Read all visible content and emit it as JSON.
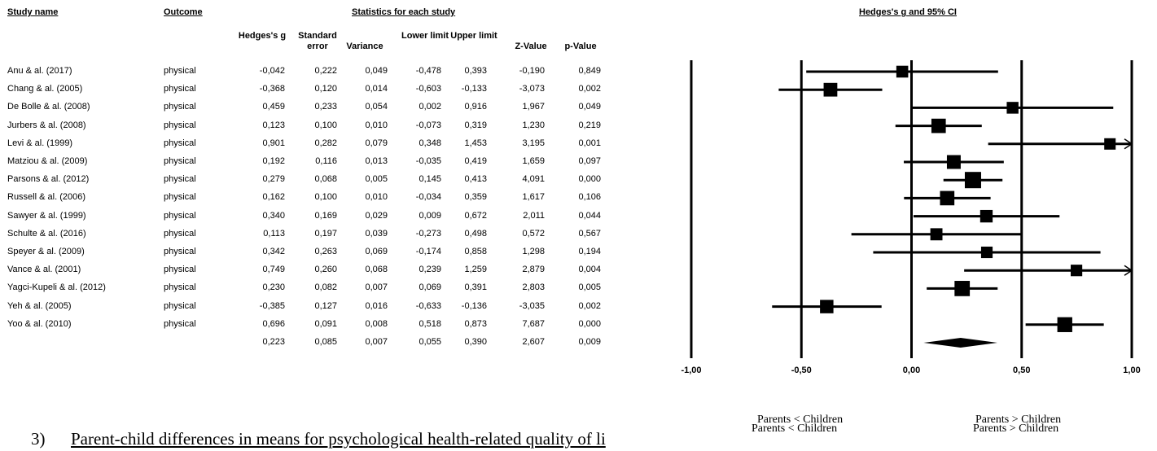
{
  "headers": {
    "study_name": "Study name",
    "outcome": "Outcome",
    "stats_group": "Statistics for each study",
    "ci_group": "Hedges's g and 95% CI",
    "columns": [
      "Hedges's g",
      "Standard error",
      "Variance",
      "Lower limit",
      "Upper limit",
      "Z-Value",
      "p-Value"
    ]
  },
  "chart_data": {
    "type": "forest",
    "title": "Hedges's g and 95% CI",
    "xlim": [
      -1.0,
      1.0
    ],
    "x_ticks": [
      "-1,00",
      "-0,50",
      "0,00",
      "0,50",
      "1,00"
    ],
    "x_tick_values": [
      -1.0,
      -0.5,
      0.0,
      0.5,
      1.0
    ],
    "studies": [
      {
        "name": "Anu & al. (2017)",
        "outcome": "physical",
        "g": -0.042,
        "se": 0.222,
        "variance": 0.049,
        "lower": -0.478,
        "upper": 0.393,
        "z": -0.19,
        "p": 0.849,
        "text": [
          "-0,042",
          "0,222",
          "0,049",
          "-0,478",
          "0,393",
          "-0,190",
          "0,849"
        ]
      },
      {
        "name": "Chang & al. (2005)",
        "outcome": "physical",
        "g": -0.368,
        "se": 0.12,
        "variance": 0.014,
        "lower": -0.603,
        "upper": -0.133,
        "z": -3.073,
        "p": 0.002,
        "text": [
          "-0,368",
          "0,120",
          "0,014",
          "-0,603",
          "-0,133",
          "-3,073",
          "0,002"
        ]
      },
      {
        "name": "De Bolle & al. (2008)",
        "outcome": "physical",
        "g": 0.459,
        "se": 0.233,
        "variance": 0.054,
        "lower": 0.002,
        "upper": 0.916,
        "z": 1.967,
        "p": 0.049,
        "text": [
          "0,459",
          "0,233",
          "0,054",
          "0,002",
          "0,916",
          "1,967",
          "0,049"
        ]
      },
      {
        "name": "Jurbers & al. (2008)",
        "outcome": "physical",
        "g": 0.123,
        "se": 0.1,
        "variance": 0.01,
        "lower": -0.073,
        "upper": 0.319,
        "z": 1.23,
        "p": 0.219,
        "text": [
          "0,123",
          "0,100",
          "0,010",
          "-0,073",
          "0,319",
          "1,230",
          "0,219"
        ]
      },
      {
        "name": "Levi & al. (1999)",
        "outcome": "physical",
        "g": 0.901,
        "se": 0.282,
        "variance": 0.079,
        "lower": 0.348,
        "upper": 1.453,
        "z": 3.195,
        "p": 0.001,
        "text": [
          "0,901",
          "0,282",
          "0,079",
          "0,348",
          "1,453",
          "3,195",
          "0,001"
        ]
      },
      {
        "name": "Matziou & al. (2009)",
        "outcome": "physical",
        "g": 0.192,
        "se": 0.116,
        "variance": 0.013,
        "lower": -0.035,
        "upper": 0.419,
        "z": 1.659,
        "p": 0.097,
        "text": [
          "0,192",
          "0,116",
          "0,013",
          "-0,035",
          "0,419",
          "1,659",
          "0,097"
        ]
      },
      {
        "name": "Parsons & al. (2012)",
        "outcome": "physical",
        "g": 0.279,
        "se": 0.068,
        "variance": 0.005,
        "lower": 0.145,
        "upper": 0.413,
        "z": 4.091,
        "p": 0.0,
        "text": [
          "0,279",
          "0,068",
          "0,005",
          "0,145",
          "0,413",
          "4,091",
          "0,000"
        ]
      },
      {
        "name": "Russell & al. (2006)",
        "outcome": "physical",
        "g": 0.162,
        "se": 0.1,
        "variance": 0.01,
        "lower": -0.034,
        "upper": 0.359,
        "z": 1.617,
        "p": 0.106,
        "text": [
          "0,162",
          "0,100",
          "0,010",
          "-0,034",
          "0,359",
          "1,617",
          "0,106"
        ]
      },
      {
        "name": "Sawyer & al. (1999)",
        "outcome": "physical",
        "g": 0.34,
        "se": 0.169,
        "variance": 0.029,
        "lower": 0.009,
        "upper": 0.672,
        "z": 2.011,
        "p": 0.044,
        "text": [
          "0,340",
          "0,169",
          "0,029",
          "0,009",
          "0,672",
          "2,011",
          "0,044"
        ]
      },
      {
        "name": "Schulte & al. (2016)",
        "outcome": "physical",
        "g": 0.113,
        "se": 0.197,
        "variance": 0.039,
        "lower": -0.273,
        "upper": 0.498,
        "z": 0.572,
        "p": 0.567,
        "text": [
          "0,113",
          "0,197",
          "0,039",
          "-0,273",
          "0,498",
          "0,572",
          "0,567"
        ]
      },
      {
        "name": "Speyer & al. (2009)",
        "outcome": "physical",
        "g": 0.342,
        "se": 0.263,
        "variance": 0.069,
        "lower": -0.174,
        "upper": 0.858,
        "z": 1.298,
        "p": 0.194,
        "text": [
          "0,342",
          "0,263",
          "0,069",
          "-0,174",
          "0,858",
          "1,298",
          "0,194"
        ]
      },
      {
        "name": "Vance & al. (2001)",
        "outcome": "physical",
        "g": 0.749,
        "se": 0.26,
        "variance": 0.068,
        "lower": 0.239,
        "upper": 1.259,
        "z": 2.879,
        "p": 0.004,
        "text": [
          "0,749",
          "0,260",
          "0,068",
          "0,239",
          "1,259",
          "2,879",
          "0,004"
        ]
      },
      {
        "name": "Yagci-Kupeli & al. (2012)",
        "outcome": "physical",
        "g": 0.23,
        "se": 0.082,
        "variance": 0.007,
        "lower": 0.069,
        "upper": 0.391,
        "z": 2.803,
        "p": 0.005,
        "text": [
          "0,230",
          "0,082",
          "0,007",
          "0,069",
          "0,391",
          "2,803",
          "0,005"
        ]
      },
      {
        "name": "Yeh & al. (2005)",
        "outcome": "physical",
        "g": -0.385,
        "se": 0.127,
        "variance": 0.016,
        "lower": -0.633,
        "upper": -0.136,
        "z": -3.035,
        "p": 0.002,
        "text": [
          "-0,385",
          "0,127",
          "0,016",
          "-0,633",
          "-0,136",
          "-3,035",
          "0,002"
        ]
      },
      {
        "name": "Yoo & al. (2010)",
        "outcome": "physical",
        "g": 0.696,
        "se": 0.091,
        "variance": 0.008,
        "lower": 0.518,
        "upper": 0.873,
        "z": 7.687,
        "p": 0.0,
        "text": [
          "0,696",
          "0,091",
          "0,008",
          "0,518",
          "0,873",
          "7,687",
          "0,000"
        ]
      }
    ],
    "summary": {
      "g": 0.223,
      "se": 0.085,
      "variance": 0.007,
      "lower": 0.055,
      "upper": 0.39,
      "z": 2.607,
      "p": 0.009,
      "text": [
        "0,223",
        "0,085",
        "0,007",
        "0,055",
        "0,390",
        "2,607",
        "0,009"
      ]
    },
    "favours_left": "Parents < Children",
    "favours_right": "Parents > Children"
  },
  "caption": {
    "number": "3)",
    "text": "Parent-child differences in means for psychological health-related quality of li"
  }
}
